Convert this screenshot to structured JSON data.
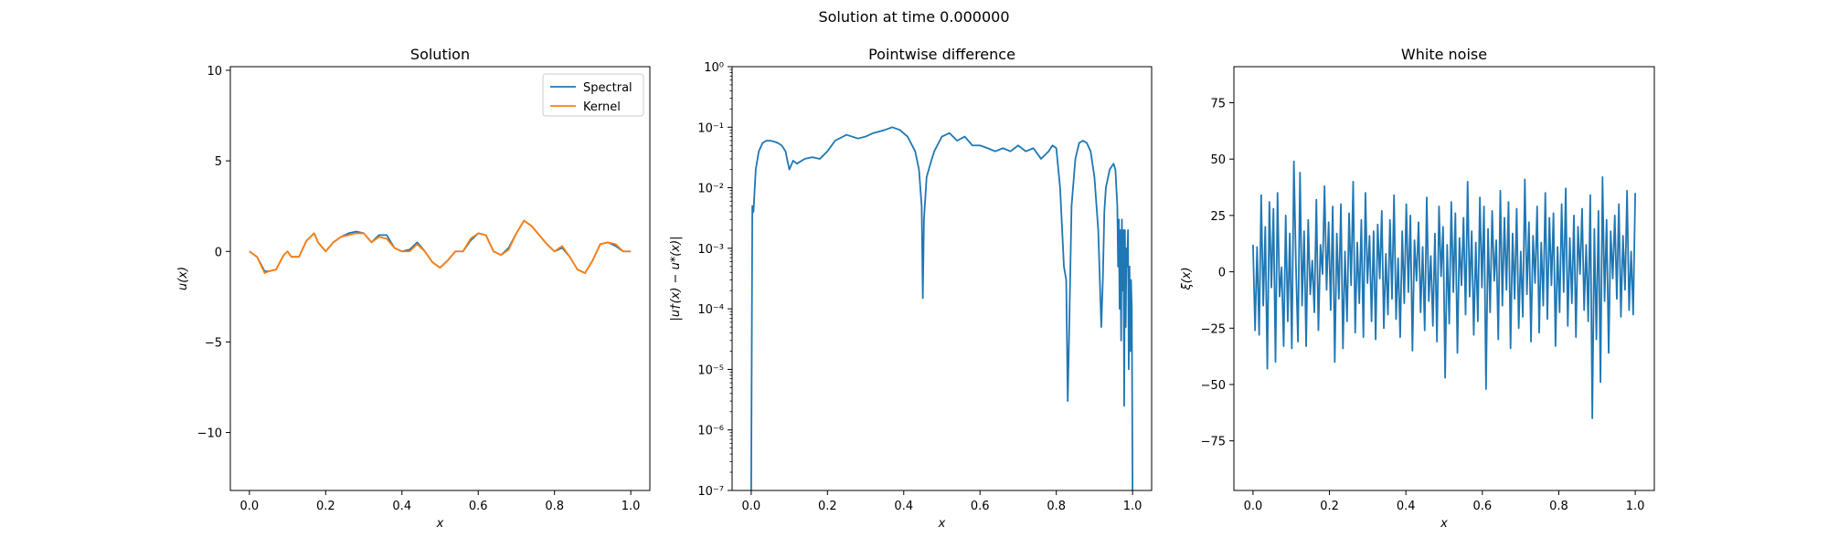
{
  "figure": {
    "suptitle": "Solution at time 0.000000"
  },
  "chart_data": [
    {
      "type": "line",
      "title": "Solution",
      "xlabel": "x",
      "ylabel": "u(x)",
      "xlim": [
        -0.05,
        1.05
      ],
      "ylim": [
        -13.2,
        10.2
      ],
      "xticks": [
        0.0,
        0.2,
        0.4,
        0.6,
        0.8,
        1.0
      ],
      "xtick_labels": [
        "0.0",
        "0.2",
        "0.4",
        "0.6",
        "0.8",
        "1.0"
      ],
      "yticks": [
        -10,
        -5,
        0,
        5,
        10
      ],
      "ytick_labels": [
        "−10",
        "−5",
        "0",
        "5",
        "10"
      ],
      "legend": {
        "placement": "upper-right",
        "entries": [
          "Spectral",
          "Kernel"
        ]
      },
      "x_knots": [
        0.0,
        0.02,
        0.04,
        0.05,
        0.07,
        0.09,
        0.1,
        0.11,
        0.13,
        0.15,
        0.17,
        0.18,
        0.2,
        0.22,
        0.24,
        0.26,
        0.28,
        0.3,
        0.32,
        0.34,
        0.36,
        0.38,
        0.4,
        0.42,
        0.44,
        0.46,
        0.48,
        0.5,
        0.52,
        0.54,
        0.56,
        0.58,
        0.6,
        0.62,
        0.64,
        0.66,
        0.68,
        0.7,
        0.72,
        0.74,
        0.76,
        0.78,
        0.8,
        0.82,
        0.84,
        0.86,
        0.88,
        0.9,
        0.92,
        0.94,
        0.96,
        0.98,
        1.0
      ],
      "series": [
        {
          "name": "Spectral",
          "color": "#1f77b4",
          "values": [
            0.0,
            -0.3,
            -1.1,
            -1.1,
            -1.0,
            -0.2,
            0.0,
            -0.3,
            -0.3,
            0.6,
            1.0,
            0.5,
            0.0,
            0.5,
            0.8,
            1.0,
            1.1,
            1.0,
            0.5,
            0.9,
            0.9,
            0.2,
            0.0,
            0.1,
            0.5,
            0.0,
            -0.6,
            -0.9,
            -0.5,
            0.0,
            0.0,
            0.6,
            1.0,
            0.9,
            0.0,
            -0.2,
            0.2,
            1.0,
            1.7,
            1.4,
            0.9,
            0.4,
            0.0,
            0.2,
            -0.3,
            -1.0,
            -1.2,
            -0.5,
            0.4,
            0.5,
            0.3,
            0.0,
            0.0
          ]
        },
        {
          "name": "Kernel",
          "color": "#ff7f0e",
          "values": [
            0.0,
            -0.3,
            -1.2,
            -1.1,
            -1.0,
            -0.2,
            0.0,
            -0.3,
            -0.3,
            0.6,
            1.0,
            0.5,
            0.0,
            0.5,
            0.8,
            0.9,
            1.0,
            1.0,
            0.5,
            0.8,
            0.7,
            0.2,
            0.0,
            0.0,
            0.4,
            0.0,
            -0.6,
            -0.9,
            -0.5,
            0.0,
            0.0,
            0.7,
            1.0,
            0.9,
            0.0,
            -0.2,
            0.1,
            1.0,
            1.7,
            1.4,
            0.9,
            0.4,
            0.0,
            0.3,
            -0.3,
            -1.0,
            -1.2,
            -0.5,
            0.4,
            0.5,
            0.4,
            0.0,
            0.0
          ]
        }
      ]
    },
    {
      "type": "line",
      "title": "Pointwise difference",
      "xlabel": "x",
      "ylabel": "|u†(x) − u*(x)|",
      "xlim": [
        -0.05,
        1.05
      ],
      "ylim": [
        1e-07,
        1
      ],
      "yscale": "log",
      "xticks": [
        0.0,
        0.2,
        0.4,
        0.6,
        0.8,
        1.0
      ],
      "xtick_labels": [
        "0.0",
        "0.2",
        "0.4",
        "0.6",
        "0.8",
        "1.0"
      ],
      "yticks": [
        1e-07,
        1e-06,
        1e-05,
        0.0001,
        0.001,
        0.01,
        0.1,
        1
      ],
      "ytick_labels": [
        "10⁻⁷",
        "10⁻⁶",
        "10⁻⁵",
        "10⁻⁴",
        "10⁻³",
        "10⁻²",
        "10⁻¹",
        "10⁰"
      ],
      "series": [
        {
          "name": "",
          "color": "#1f77b4",
          "x": [
            0.0,
            0.003,
            0.006,
            0.012,
            0.02,
            0.03,
            0.04,
            0.05,
            0.06,
            0.07,
            0.08,
            0.09,
            0.1,
            0.11,
            0.12,
            0.14,
            0.16,
            0.18,
            0.2,
            0.22,
            0.25,
            0.28,
            0.3,
            0.32,
            0.35,
            0.37,
            0.39,
            0.41,
            0.43,
            0.44,
            0.447,
            0.45,
            0.453,
            0.46,
            0.47,
            0.48,
            0.5,
            0.52,
            0.54,
            0.56,
            0.58,
            0.6,
            0.62,
            0.64,
            0.66,
            0.68,
            0.7,
            0.72,
            0.74,
            0.76,
            0.78,
            0.79,
            0.8,
            0.81,
            0.82,
            0.826,
            0.83,
            0.834,
            0.84,
            0.85,
            0.86,
            0.87,
            0.88,
            0.89,
            0.9,
            0.91,
            0.918,
            0.922,
            0.926,
            0.93,
            0.94,
            0.95,
            0.955,
            0.96,
            0.962,
            0.964,
            0.966,
            0.968,
            0.97,
            0.972,
            0.974,
            0.976,
            0.978,
            0.98,
            0.982,
            0.984,
            0.986,
            0.988,
            0.99,
            0.992,
            0.994,
            0.996,
            0.998,
            1.0
          ],
          "values": [
            1e-07,
            0.005,
            0.004,
            0.02,
            0.04,
            0.055,
            0.06,
            0.06,
            0.058,
            0.055,
            0.05,
            0.04,
            0.02,
            0.028,
            0.025,
            0.03,
            0.032,
            0.03,
            0.04,
            0.06,
            0.075,
            0.065,
            0.07,
            0.08,
            0.09,
            0.1,
            0.09,
            0.07,
            0.04,
            0.02,
            0.005,
            0.00015,
            0.003,
            0.015,
            0.025,
            0.04,
            0.07,
            0.08,
            0.06,
            0.07,
            0.05,
            0.05,
            0.045,
            0.04,
            0.045,
            0.04,
            0.05,
            0.04,
            0.045,
            0.03,
            0.04,
            0.05,
            0.045,
            0.01,
            0.0005,
            0.0003,
            3e-06,
            5e-05,
            0.005,
            0.03,
            0.055,
            0.06,
            0.055,
            0.04,
            0.015,
            0.002,
            5e-05,
            0.0003,
            0.004,
            0.01,
            0.02,
            0.025,
            0.02,
            0.005,
            0.0005,
            0.003,
            0.0001,
            0.002,
            3e-05,
            0.003,
            0.0002,
            0.002,
            2.5e-06,
            0.002,
            5e-05,
            0.001,
            0.0005,
            0.002,
            1e-05,
            0.0005,
            2e-05,
            0.0003,
            0.0001,
            1e-07
          ]
        }
      ]
    },
    {
      "type": "line",
      "title": "White noise",
      "xlabel": "x",
      "ylabel": "ξ(x)",
      "xlim": [
        -0.05,
        1.05
      ],
      "ylim": [
        -97,
        91
      ],
      "xticks": [
        0.0,
        0.2,
        0.4,
        0.6,
        0.8,
        1.0
      ],
      "xtick_labels": [
        "0.0",
        "0.2",
        "0.4",
        "0.6",
        "0.8",
        "1.0"
      ],
      "yticks": [
        -75,
        -50,
        -25,
        0,
        25,
        50,
        75
      ],
      "ytick_labels": [
        "−75",
        "−50",
        "−25",
        "0",
        "25",
        "50",
        "75"
      ],
      "series": [
        {
          "name": "",
          "color": "#1f77b4",
          "x_range": [
            0.0,
            1.0
          ],
          "values": [
            12,
            -26,
            11,
            -28,
            34,
            -15,
            20,
            -43,
            31,
            -7,
            28,
            -40,
            35,
            -11,
            2,
            -33,
            25,
            -22,
            17,
            -34,
            49,
            3,
            -31,
            44,
            -15,
            18,
            -33,
            23,
            -10,
            5,
            -18,
            32,
            -26,
            12,
            -1,
            38,
            -8,
            22,
            -17,
            29,
            -40,
            17,
            -12,
            30,
            -34,
            9,
            -22,
            26,
            -6,
            40,
            -27,
            13,
            -14,
            23,
            -29,
            35,
            -5,
            16,
            -22,
            18,
            -30,
            21,
            -3,
            27,
            -25,
            8,
            -19,
            23,
            -12,
            34,
            -21,
            6,
            -29,
            18,
            -14,
            30,
            -9,
            25,
            -35,
            14,
            -4,
            22,
            -18,
            11,
            -26,
            33,
            -13,
            7,
            -24,
            17,
            -31,
            29,
            -2,
            20,
            -47,
            12,
            -23,
            31,
            -9,
            26,
            -36,
            15,
            -6,
            24,
            -19,
            40,
            -11,
            18,
            -28,
            13,
            -22,
            33,
            -7,
            29,
            -52,
            19,
            -18,
            27,
            -4,
            14,
            -30,
            36,
            -15,
            24,
            -8,
            31,
            -34,
            17,
            -12,
            28,
            -25,
            9,
            -20,
            41,
            -10,
            22,
            -31,
            16,
            -5,
            29,
            -27,
            13,
            -15,
            35,
            -21,
            24,
            -6,
            26,
            -33,
            11,
            -18,
            30,
            -9,
            37,
            -24,
            15,
            -14,
            25,
            -29,
            20,
            -1,
            28,
            -17,
            12,
            -22,
            34,
            -65,
            19,
            -30,
            27,
            -49,
            42,
            -13,
            23,
            -36,
            18,
            -3,
            25,
            -12,
            30,
            -20,
            16,
            -8,
            36,
            -17,
            9,
            -19,
            35
          ]
        }
      ]
    }
  ]
}
